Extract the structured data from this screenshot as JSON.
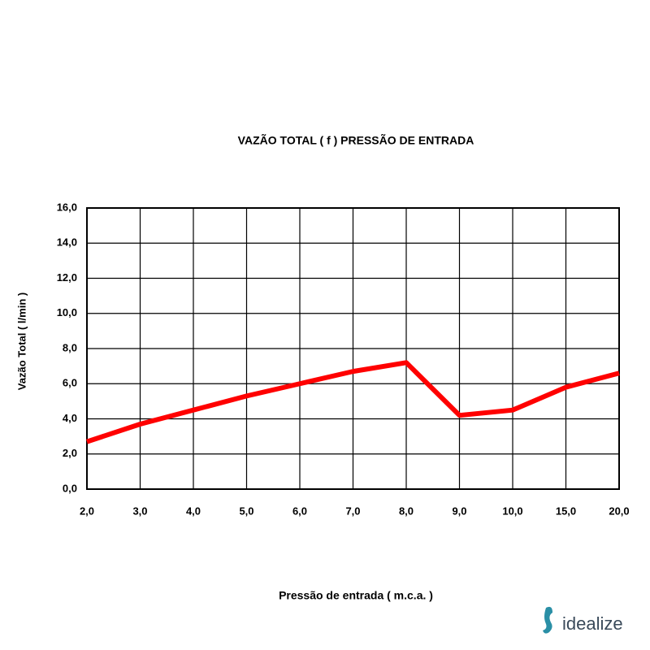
{
  "chart_data": {
    "type": "line",
    "title": "VAZÃO TOTAL ( f ) PRESSÃO DE ENTRADA",
    "x_label": "Pressão de entrada ( m.c.a. )",
    "y_label": "Vazão Total ( l/min )",
    "categories": [
      "2,0",
      "3,0",
      "4,0",
      "5,0",
      "6,0",
      "7,0",
      "8,0",
      "9,0",
      "10,0",
      "15,0",
      "20,0"
    ],
    "series": [
      {
        "color": "#ff0000",
        "values": [
          2.7,
          3.7,
          4.5,
          5.3,
          6.0,
          6.7,
          7.2,
          4.2,
          4.5,
          5.8,
          6.6
        ]
      }
    ],
    "ylim": [
      0,
      16
    ],
    "yticks": [
      {
        "value": 0,
        "label": "0,0"
      },
      {
        "value": 2,
        "label": "2,0"
      },
      {
        "value": 4,
        "label": "4,0"
      },
      {
        "value": 6,
        "label": "6,0"
      },
      {
        "value": 8,
        "label": "8,0"
      },
      {
        "value": 10,
        "label": "10,0"
      },
      {
        "value": 12,
        "label": "12,0"
      },
      {
        "value": 14,
        "label": "14,0"
      },
      {
        "value": 16,
        "label": "16,0"
      }
    ],
    "grid": true
  },
  "watermark": "idealize"
}
